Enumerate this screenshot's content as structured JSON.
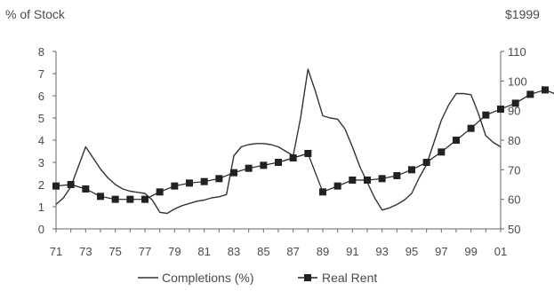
{
  "chart_data": {
    "type": "line",
    "left_axis_title": "% of Stock",
    "right_axis_title": "$1999",
    "left_ylim": [
      0,
      8
    ],
    "left_yticks": [
      "0",
      "1",
      "2",
      "3",
      "4",
      "5",
      "6",
      "7",
      "8"
    ],
    "right_ylim": [
      50,
      110
    ],
    "right_yticks": [
      "50",
      "60",
      "70",
      "80",
      "90",
      "100",
      "110"
    ],
    "x_start": 1971,
    "x_end": 2001,
    "x_tick_labels": [
      "71",
      "73",
      "75",
      "77",
      "79",
      "81",
      "83",
      "85",
      "87",
      "89",
      "91",
      "93",
      "95",
      "97",
      "99",
      "01"
    ],
    "grid": false,
    "legend_position": "bottom",
    "series": [
      {
        "name": "Completions (%)",
        "axis": "left",
        "style": "line",
        "color": "#333333",
        "points": [
          [
            1971,
            1.1
          ],
          [
            1971.5,
            1.4
          ],
          [
            1972,
            1.9
          ],
          [
            1972.5,
            2.8
          ],
          [
            1973,
            3.7
          ],
          [
            1973.5,
            3.2
          ],
          [
            1974,
            2.7
          ],
          [
            1974.5,
            2.3
          ],
          [
            1975,
            2.0
          ],
          [
            1975.5,
            1.8
          ],
          [
            1976,
            1.7
          ],
          [
            1976.5,
            1.65
          ],
          [
            1977,
            1.6
          ],
          [
            1977.5,
            1.3
          ],
          [
            1978,
            0.75
          ],
          [
            1978.5,
            0.7
          ],
          [
            1979,
            0.9
          ],
          [
            1979.5,
            1.05
          ],
          [
            1980,
            1.15
          ],
          [
            1980.5,
            1.25
          ],
          [
            1981,
            1.3
          ],
          [
            1981.5,
            1.4
          ],
          [
            1982,
            1.45
          ],
          [
            1982.5,
            1.55
          ],
          [
            1983,
            3.3
          ],
          [
            1983.5,
            3.7
          ],
          [
            1984,
            3.8
          ],
          [
            1984.5,
            3.85
          ],
          [
            1985,
            3.85
          ],
          [
            1985.5,
            3.8
          ],
          [
            1986,
            3.7
          ],
          [
            1986.5,
            3.5
          ],
          [
            1987,
            3.3
          ],
          [
            1987.5,
            5.0
          ],
          [
            1988,
            7.2
          ],
          [
            1988.5,
            6.2
          ],
          [
            1989,
            5.1
          ],
          [
            1989.5,
            5.0
          ],
          [
            1990,
            4.95
          ],
          [
            1990.5,
            4.5
          ],
          [
            1991,
            3.7
          ],
          [
            1991.5,
            2.8
          ],
          [
            1992,
            2.1
          ],
          [
            1992.5,
            1.4
          ],
          [
            1993,
            0.85
          ],
          [
            1993.5,
            0.95
          ],
          [
            1994,
            1.1
          ],
          [
            1994.5,
            1.3
          ],
          [
            1995,
            1.6
          ],
          [
            1995.5,
            2.3
          ],
          [
            1996,
            2.9
          ],
          [
            1996.5,
            3.9
          ],
          [
            1997,
            4.9
          ],
          [
            1997.5,
            5.6
          ],
          [
            1998,
            6.1
          ],
          [
            1998.5,
            6.1
          ],
          [
            1999,
            6.05
          ],
          [
            1999.5,
            5.2
          ],
          [
            2000,
            4.2
          ],
          [
            2000.5,
            3.9
          ],
          [
            2001,
            3.7
          ]
        ]
      },
      {
        "name": "Real Rent",
        "axis": "right",
        "style": "line-with-square-markers",
        "color": "#222222",
        "points": [
          [
            1971,
            64.5
          ],
          [
            1972,
            65
          ],
          [
            1973,
            63.5
          ],
          [
            1974,
            61
          ],
          [
            1975,
            60
          ],
          [
            1976,
            60
          ],
          [
            1977,
            60
          ],
          [
            1978,
            62.5
          ],
          [
            1979,
            64.5
          ],
          [
            1980,
            65.5
          ],
          [
            1981,
            66
          ],
          [
            1982,
            67
          ],
          [
            1983,
            69
          ],
          [
            1984,
            70.5
          ],
          [
            1985,
            71.5
          ],
          [
            1986,
            72.5
          ],
          [
            1987,
            74
          ],
          [
            1988,
            75.5
          ],
          [
            1989,
            62.5
          ],
          [
            1990,
            64.5
          ],
          [
            1991,
            66.5
          ],
          [
            1992,
            66.5
          ],
          [
            1993,
            67
          ],
          [
            1994,
            68
          ],
          [
            1995,
            70
          ],
          [
            1996,
            72.5
          ],
          [
            1997,
            76
          ],
          [
            1998,
            80
          ],
          [
            1999,
            84
          ],
          [
            2000,
            88.5
          ],
          [
            2001,
            90.5
          ],
          [
            2002,
            92.5
          ],
          [
            2003,
            95.5
          ],
          [
            2004,
            97
          ],
          [
            2005,
            95
          ]
        ]
      }
    ]
  }
}
